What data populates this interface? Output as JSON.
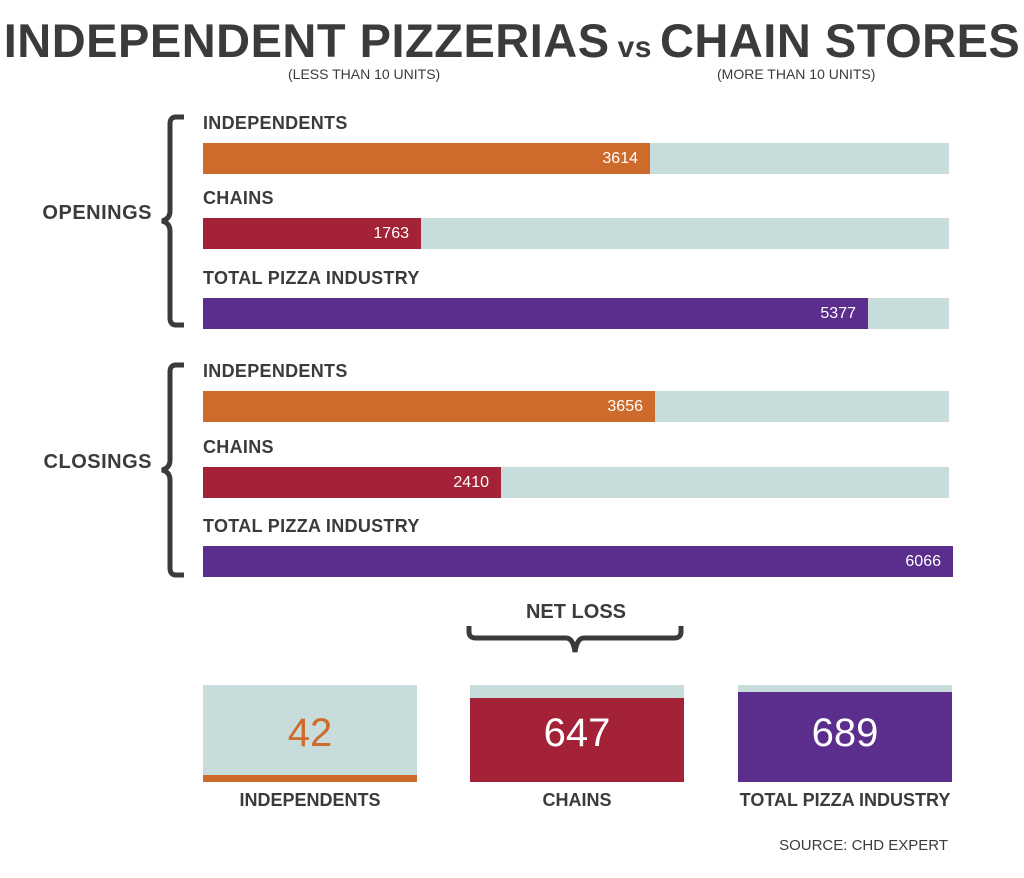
{
  "colors": {
    "independents": "#cd6a2c",
    "chains": "#a32237",
    "total": "#5b2d8c",
    "track": "#c8dcdb"
  },
  "header": {
    "title_left": "INDEPENDENT PIZZERIAS",
    "title_vs": "vs",
    "title_right": "CHAIN STORES",
    "sub_left": "(LESS THAN 10 UNITS)",
    "sub_right": "(MORE THAN 10 UNITS)"
  },
  "net_loss_label": "NET LOSS",
  "source": "SOURCE: CHD EXPERT",
  "chart_data": [
    {
      "type": "bar",
      "title": "OPENINGS",
      "categories": [
        "INDEPENDENTS",
        "CHAINS",
        "TOTAL PIZZA INDUSTRY"
      ],
      "values": [
        3614,
        1763,
        5377
      ],
      "value_labels": [
        "3614",
        "1763",
        "5377"
      ],
      "xlim": [
        0,
        6066
      ]
    },
    {
      "type": "bar",
      "title": "CLOSINGS",
      "categories": [
        "INDEPENDENTS",
        "CHAINS",
        "TOTAL PIZZA INDUSTRY"
      ],
      "values": [
        3656,
        2410,
        6066
      ],
      "value_labels": [
        "3656",
        "2410",
        "6066"
      ],
      "xlim": [
        0,
        6066
      ]
    },
    {
      "type": "bar",
      "title": "NET LOSS",
      "categories": [
        "INDEPENDENTS",
        "CHAINS",
        "TOTAL PIZZA INDUSTRY"
      ],
      "values": [
        42,
        647,
        689
      ],
      "value_labels": [
        "42",
        "647",
        "689"
      ],
      "ylim": [
        0,
        745
      ]
    }
  ]
}
